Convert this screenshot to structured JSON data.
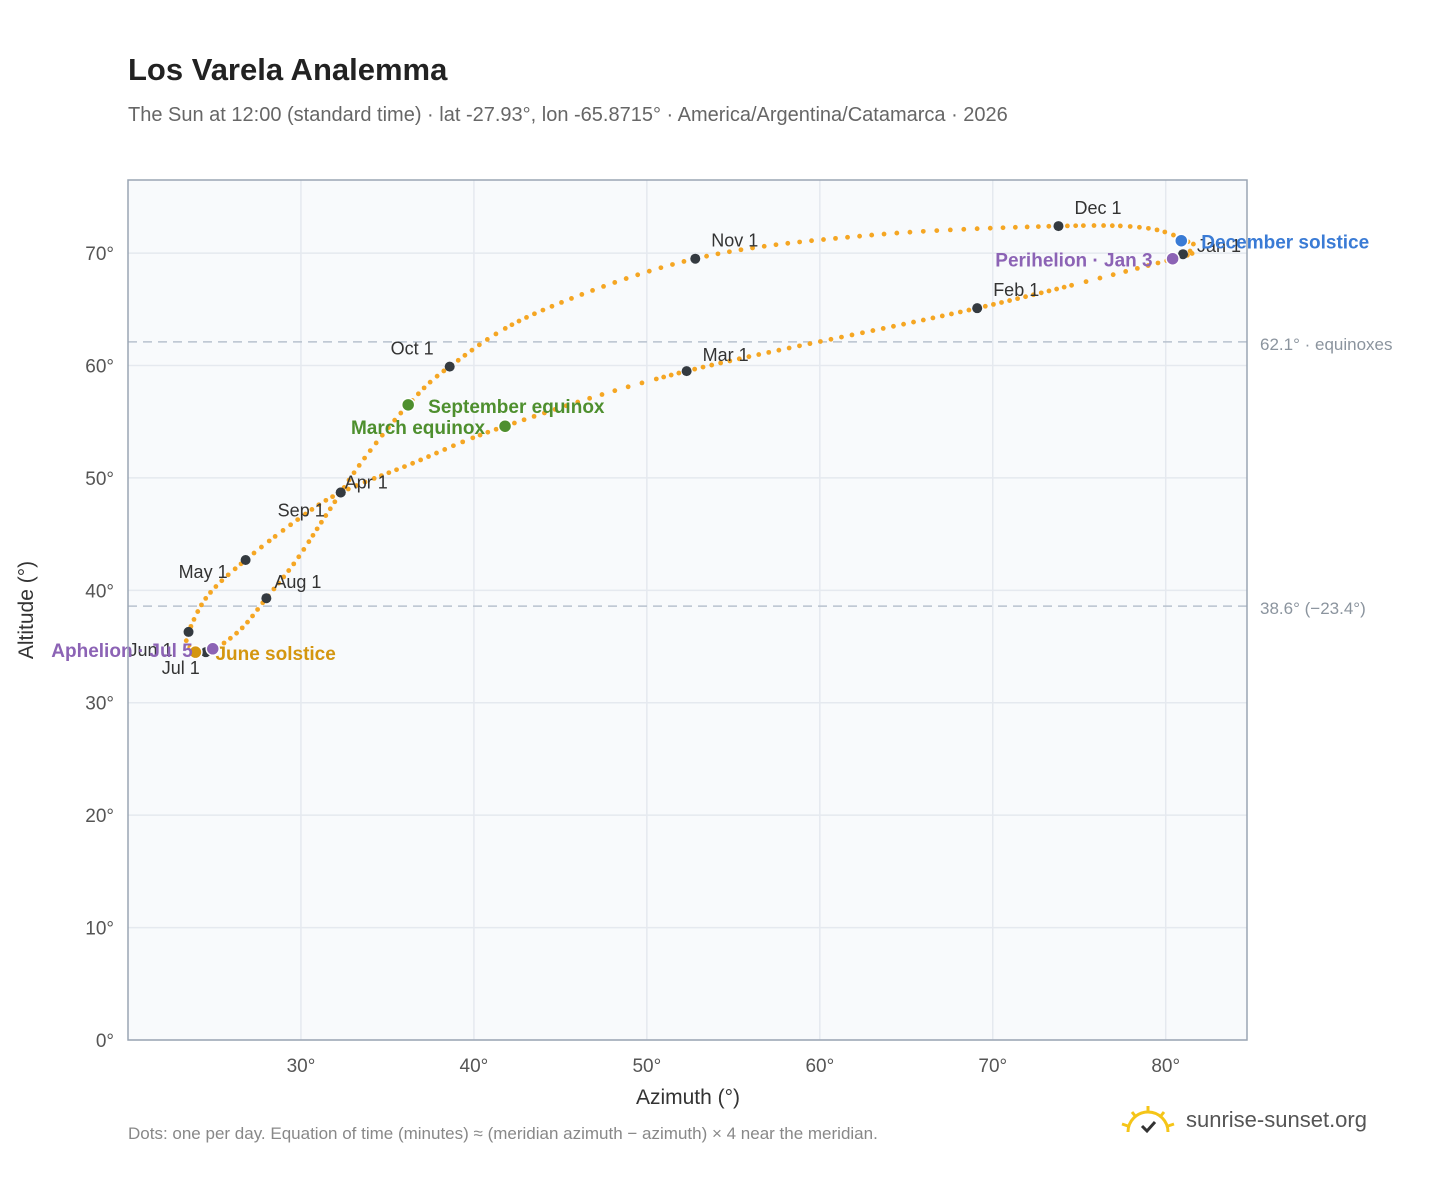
{
  "title": "Los Varela Analemma",
  "subtitle": "The Sun at 12:00 (standard time) · lat -27.93°, lon -65.8715° · America/Argentina/Catamarca · 2026",
  "footnote": "Dots: one per day. Equation of time (minutes) ≈ (meridian azimuth − azimuth) × 4 near the meridian.",
  "brand": "sunrise-sunset.org",
  "colors": {
    "curve": "#f5a623",
    "month_marker": "#343a40",
    "december_solstice": "#3a7bd5",
    "june_solstice": "#d4960f",
    "equinox": "#4e8f2e",
    "apsis": "#8c63b5",
    "reference_line": "#b8c2ce",
    "plot_bg": "#f8fafc",
    "grid": "#e5e9ef"
  },
  "chart_data": {
    "type": "scatter",
    "title": "Los Varela Analemma",
    "xlabel": "Azimuth (°)",
    "ylabel": "Altitude (°)",
    "xlim": [
      20,
      84.7
    ],
    "ylim": [
      0,
      76.5
    ],
    "x_ticks": [
      30,
      40,
      50,
      60,
      70,
      80
    ],
    "y_ticks": [
      0,
      10,
      20,
      30,
      40,
      50,
      60,
      70
    ],
    "x_tick_labels": [
      "30°",
      "40°",
      "50°",
      "60°",
      "70°",
      "80°"
    ],
    "y_tick_labels": [
      "0°",
      "10°",
      "20°",
      "30°",
      "40°",
      "50°",
      "60°",
      "70°"
    ],
    "grid": true,
    "reference_lines": [
      {
        "y": 62.1,
        "label": "62.1° · equinoxes"
      },
      {
        "y": 38.6,
        "label": "38.6° (−23.4°)"
      }
    ],
    "path_anchors": [
      {
        "x": 81.6,
        "y": 70.8
      },
      {
        "x": 81.3,
        "y": 70.0
      },
      {
        "x": 80.5,
        "y": 69.5
      },
      {
        "x": 69.1,
        "y": 65.1
      },
      {
        "x": 52.3,
        "y": 59.5
      },
      {
        "x": 41.8,
        "y": 54.6
      },
      {
        "x": 36.3,
        "y": 51.2
      },
      {
        "x": 32.3,
        "y": 48.7
      },
      {
        "x": 30.0,
        "y": 46.5
      },
      {
        "x": 26.8,
        "y": 42.7
      },
      {
        "x": 24.6,
        "y": 39.5
      },
      {
        "x": 23.5,
        "y": 36.3
      },
      {
        "x": 23.4,
        "y": 35.4
      },
      {
        "x": 23.9,
        "y": 34.5
      },
      {
        "x": 24.8,
        "y": 34.6
      },
      {
        "x": 26.5,
        "y": 36.5
      },
      {
        "x": 28.0,
        "y": 39.3
      },
      {
        "x": 29.7,
        "y": 42.6
      },
      {
        "x": 31.5,
        "y": 46.8
      },
      {
        "x": 33.6,
        "y": 51.6
      },
      {
        "x": 36.2,
        "y": 56.5
      },
      {
        "x": 38.6,
        "y": 59.9
      },
      {
        "x": 43.5,
        "y": 64.6
      },
      {
        "x": 52.8,
        "y": 69.5
      },
      {
        "x": 63.0,
        "y": 71.6
      },
      {
        "x": 73.8,
        "y": 72.4
      },
      {
        "x": 79.0,
        "y": 72.2
      },
      {
        "x": 81.6,
        "y": 70.8
      }
    ],
    "month_markers": [
      {
        "label": "Jan 1",
        "x": 81.0,
        "y": 69.9
      },
      {
        "label": "Feb 1",
        "x": 69.1,
        "y": 65.1
      },
      {
        "label": "Mar 1",
        "x": 52.3,
        "y": 59.5
      },
      {
        "label": "Apr 1",
        "x": 32.3,
        "y": 48.7
      },
      {
        "label": "May 1",
        "x": 26.8,
        "y": 42.7
      },
      {
        "label": "Jun 1",
        "x": 23.5,
        "y": 36.3
      },
      {
        "label": "Jul 1",
        "x": 24.5,
        "y": 34.5
      },
      {
        "label": "Aug 1",
        "x": 28.0,
        "y": 39.3
      },
      {
        "label": "Sep 1",
        "x": 32.3,
        "y": 48.7
      },
      {
        "label": "Oct 1",
        "x": 38.6,
        "y": 59.9
      },
      {
        "label": "Nov 1",
        "x": 52.8,
        "y": 69.5
      },
      {
        "label": "Dec 1",
        "x": 73.8,
        "y": 72.4
      }
    ],
    "events": [
      {
        "label": "December solstice",
        "x": 80.9,
        "y": 71.1,
        "kind": "december_solstice"
      },
      {
        "label": "Perihelion · Jan 3",
        "x": 80.4,
        "y": 69.5,
        "kind": "apsis"
      },
      {
        "label": "September equinox",
        "x": 36.2,
        "y": 56.5,
        "kind": "equinox"
      },
      {
        "label": "March equinox",
        "x": 41.8,
        "y": 54.6,
        "kind": "equinox"
      },
      {
        "label": "June solstice",
        "x": 23.9,
        "y": 34.5,
        "kind": "june_solstice"
      },
      {
        "label": "Aphelion · Jul 5",
        "x": 24.9,
        "y": 34.8,
        "kind": "apsis"
      }
    ]
  }
}
